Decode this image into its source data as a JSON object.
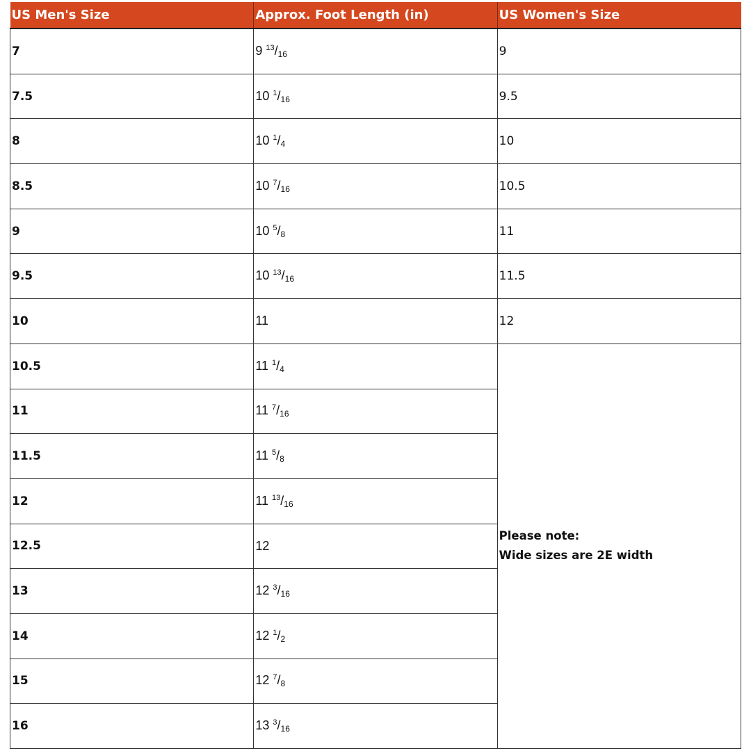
{
  "colors": {
    "header_bg": "#D5481F",
    "header_text": "#FFFFFF"
  },
  "headers": [
    "US Men's Size",
    "Approx. Foot Length (in)",
    "US Women's Size"
  ],
  "rows": [
    {
      "men": "7",
      "length": {
        "whole": "9",
        "num": "13",
        "den": "16"
      },
      "women": "9"
    },
    {
      "men": "7.5",
      "length": {
        "whole": "10",
        "num": "1",
        "den": "16"
      },
      "women": "9.5"
    },
    {
      "men": "8",
      "length": {
        "whole": "10",
        "num": "1",
        "den": "4"
      },
      "women": "10"
    },
    {
      "men": "8.5",
      "length": {
        "whole": "10",
        "num": "7",
        "den": "16"
      },
      "women": "10.5"
    },
    {
      "men": "9",
      "length": {
        "whole": "10",
        "num": "5",
        "den": "8"
      },
      "women": "11"
    },
    {
      "men": "9.5",
      "length": {
        "whole": "10",
        "num": "13",
        "den": "16"
      },
      "women": "11.5"
    },
    {
      "men": "10",
      "length": {
        "whole": "11"
      },
      "women": "12"
    },
    {
      "men": "10.5",
      "length": {
        "whole": "11",
        "num": "1",
        "den": "4"
      }
    },
    {
      "men": "11",
      "length": {
        "whole": "11",
        "num": "7",
        "den": "16"
      }
    },
    {
      "men": "11.5",
      "length": {
        "whole": "11",
        "num": "5",
        "den": "8"
      }
    },
    {
      "men": "12",
      "length": {
        "whole": "11",
        "num": "13",
        "den": "16"
      }
    },
    {
      "men": "12.5",
      "length": {
        "whole": "12"
      }
    },
    {
      "men": "13",
      "length": {
        "whole": "12",
        "num": "3",
        "den": "16"
      }
    },
    {
      "men": "14",
      "length": {
        "whole": "12",
        "num": "1",
        "den": "2"
      }
    },
    {
      "men": "15",
      "length": {
        "whole": "12",
        "num": "7",
        "den": "8"
      }
    },
    {
      "men": "16",
      "length": {
        "whole": "13",
        "num": "3",
        "den": "16"
      }
    }
  ],
  "note": {
    "line1": "Please note:",
    "line2": "Wide sizes are 2E width"
  }
}
